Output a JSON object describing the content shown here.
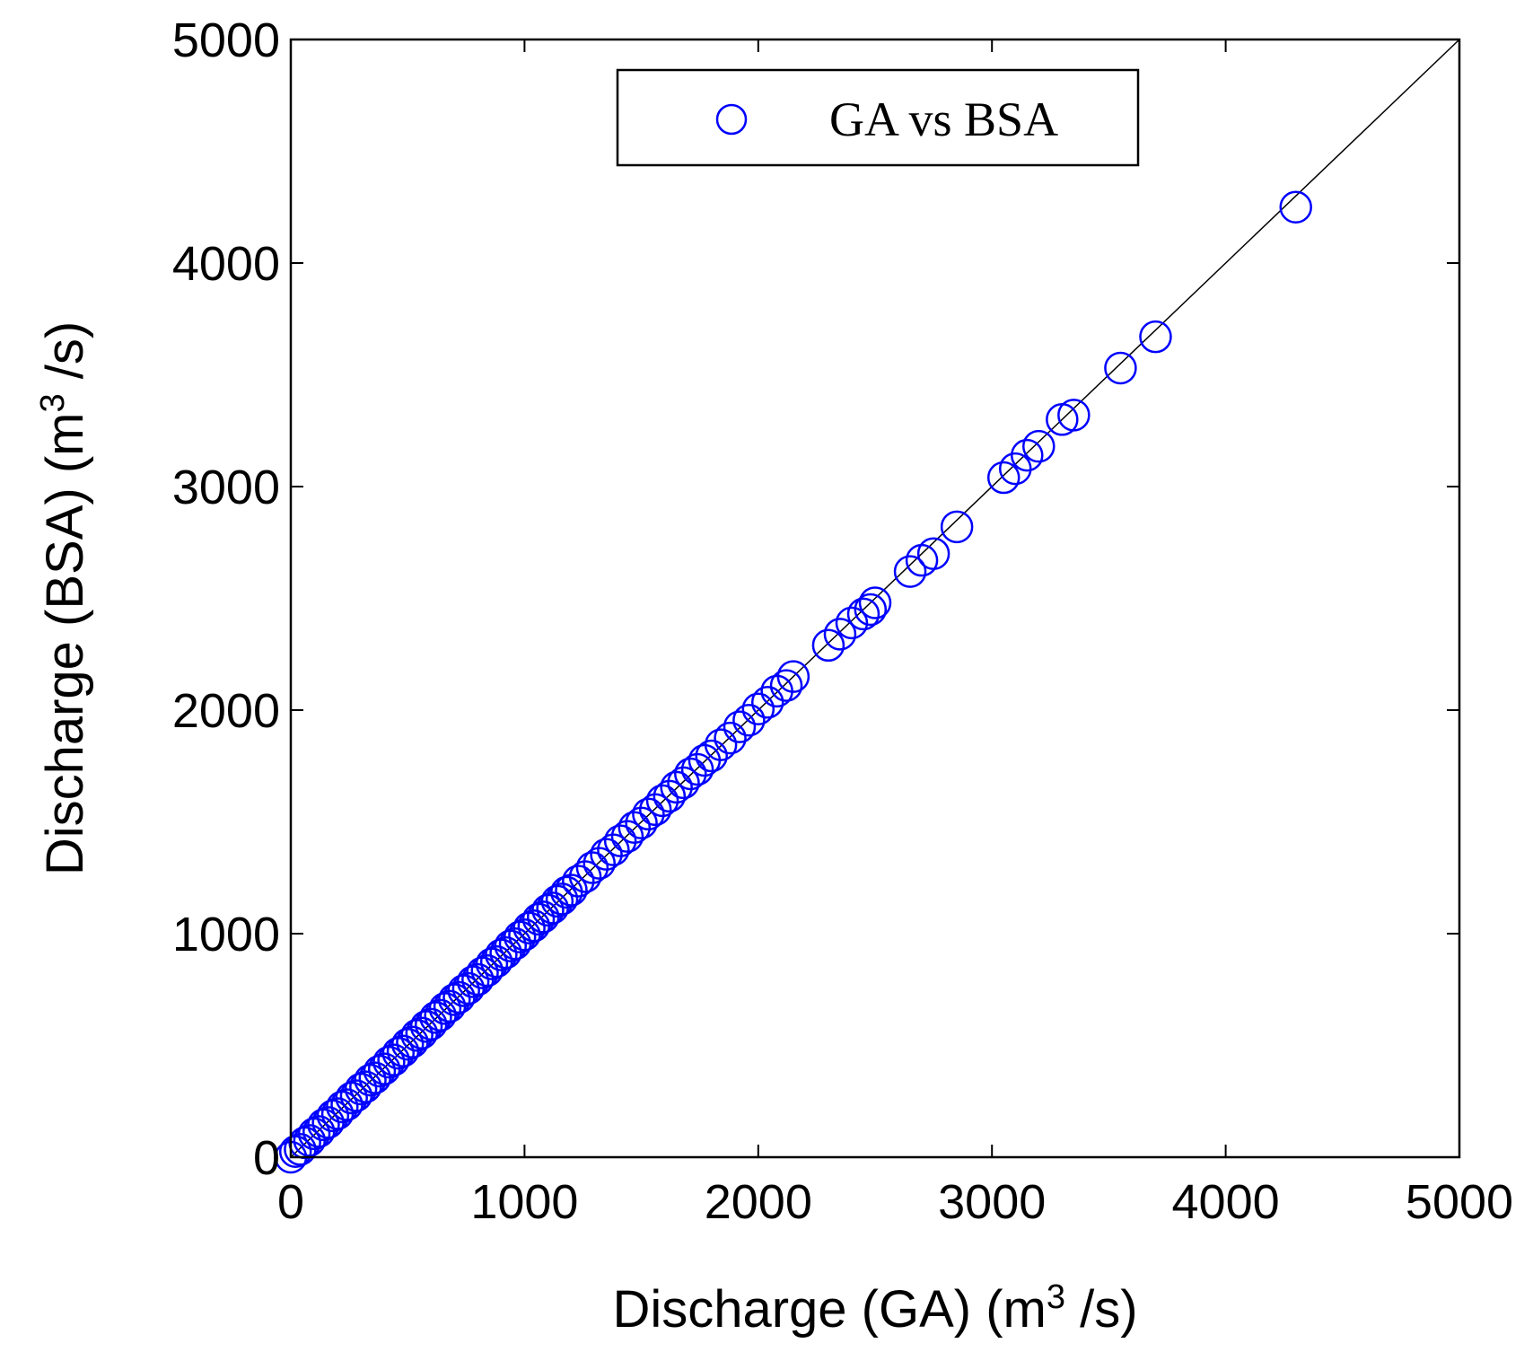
{
  "chart_data": {
    "type": "scatter",
    "xlabel": "Discharge (GA) (m³ /s)",
    "ylabel": "Discharge (BSA) (m³ /s)",
    "xlabel_parts": {
      "pre": "Discharge (GA) (m",
      "sup": "3",
      "post": " /s)"
    },
    "ylabel_parts": {
      "pre": "Discharge (BSA) (m",
      "sup": "3",
      "post": " /s)"
    },
    "xlim": [
      0,
      5000
    ],
    "ylim": [
      0,
      5000
    ],
    "xticks": [
      0,
      1000,
      2000,
      3000,
      4000,
      5000
    ],
    "yticks": [
      0,
      1000,
      2000,
      3000,
      4000,
      5000
    ],
    "xtick_labels": [
      "0",
      "1000",
      "2000",
      "3000",
      "4000",
      "5000"
    ],
    "ytick_labels": [
      "0",
      "1000",
      "2000",
      "3000",
      "4000",
      "5000"
    ],
    "grid": false,
    "legend": {
      "position": "top-center",
      "entries": [
        "GA vs BSA"
      ]
    },
    "reference_line": {
      "label": "",
      "x": [
        0,
        5000
      ],
      "y": [
        0,
        5000
      ],
      "color": "#000000"
    },
    "series": [
      {
        "name": "GA vs BSA",
        "marker": "open-circle",
        "color": "#0000ff",
        "points": [
          [
            0,
            0
          ],
          [
            20,
            25
          ],
          [
            40,
            35
          ],
          [
            60,
            65
          ],
          [
            80,
            75
          ],
          [
            100,
            105
          ],
          [
            120,
            115
          ],
          [
            140,
            145
          ],
          [
            160,
            155
          ],
          [
            180,
            185
          ],
          [
            200,
            195
          ],
          [
            220,
            225
          ],
          [
            240,
            235
          ],
          [
            260,
            265
          ],
          [
            280,
            275
          ],
          [
            300,
            305
          ],
          [
            320,
            315
          ],
          [
            340,
            345
          ],
          [
            360,
            355
          ],
          [
            380,
            385
          ],
          [
            400,
            395
          ],
          [
            420,
            425
          ],
          [
            440,
            435
          ],
          [
            460,
            465
          ],
          [
            480,
            475
          ],
          [
            500,
            505
          ],
          [
            520,
            515
          ],
          [
            540,
            545
          ],
          [
            560,
            555
          ],
          [
            580,
            585
          ],
          [
            600,
            595
          ],
          [
            620,
            625
          ],
          [
            640,
            635
          ],
          [
            660,
            665
          ],
          [
            680,
            675
          ],
          [
            700,
            705
          ],
          [
            720,
            715
          ],
          [
            740,
            745
          ],
          [
            760,
            755
          ],
          [
            780,
            785
          ],
          [
            800,
            795
          ],
          [
            820,
            825
          ],
          [
            840,
            835
          ],
          [
            860,
            865
          ],
          [
            880,
            875
          ],
          [
            900,
            905
          ],
          [
            920,
            915
          ],
          [
            940,
            945
          ],
          [
            960,
            955
          ],
          [
            980,
            985
          ],
          [
            1000,
            995
          ],
          [
            1020,
            1025
          ],
          [
            1040,
            1035
          ],
          [
            1060,
            1065
          ],
          [
            1080,
            1075
          ],
          [
            1100,
            1105
          ],
          [
            1120,
            1115
          ],
          [
            1140,
            1145
          ],
          [
            1160,
            1155
          ],
          [
            1180,
            1185
          ],
          [
            1200,
            1195
          ],
          [
            1230,
            1235
          ],
          [
            1260,
            1255
          ],
          [
            1290,
            1295
          ],
          [
            1320,
            1315
          ],
          [
            1350,
            1355
          ],
          [
            1380,
            1375
          ],
          [
            1410,
            1415
          ],
          [
            1440,
            1435
          ],
          [
            1470,
            1475
          ],
          [
            1500,
            1495
          ],
          [
            1530,
            1535
          ],
          [
            1560,
            1555
          ],
          [
            1590,
            1595
          ],
          [
            1620,
            1615
          ],
          [
            1650,
            1655
          ],
          [
            1680,
            1675
          ],
          [
            1710,
            1715
          ],
          [
            1740,
            1735
          ],
          [
            1770,
            1775
          ],
          [
            1800,
            1795
          ],
          [
            1840,
            1845
          ],
          [
            1880,
            1875
          ],
          [
            1920,
            1925
          ],
          [
            1960,
            1955
          ],
          [
            2000,
            2005
          ],
          [
            2040,
            2035
          ],
          [
            2080,
            2085
          ],
          [
            2120,
            2110
          ],
          [
            2150,
            2150
          ],
          [
            2300,
            2290
          ],
          [
            2350,
            2340
          ],
          [
            2400,
            2390
          ],
          [
            2450,
            2430
          ],
          [
            2480,
            2450
          ],
          [
            2500,
            2480
          ],
          [
            2650,
            2620
          ],
          [
            2700,
            2670
          ],
          [
            2750,
            2700
          ],
          [
            2850,
            2820
          ],
          [
            3050,
            3040
          ],
          [
            3100,
            3080
          ],
          [
            3150,
            3140
          ],
          [
            3200,
            3180
          ],
          [
            3300,
            3300
          ],
          [
            3350,
            3320
          ],
          [
            3550,
            3530
          ],
          [
            3700,
            3670
          ],
          [
            4300,
            4250
          ]
        ]
      }
    ]
  }
}
